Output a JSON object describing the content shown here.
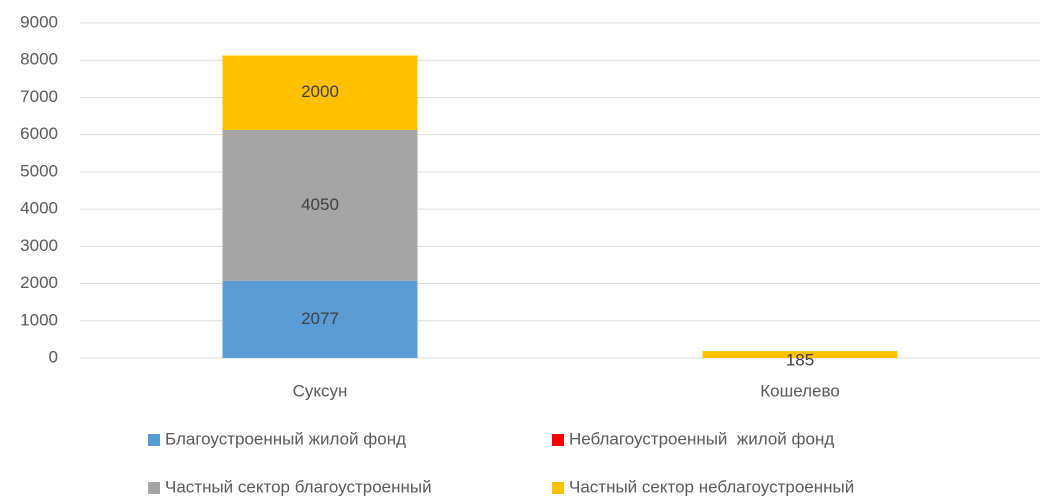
{
  "chart_data": {
    "type": "stacked-bar",
    "categories": [
      "Суксун",
      "Кошелево"
    ],
    "series": [
      {
        "name": "Благоустроенный жилой фонд",
        "color": "#5b9bd5",
        "values": [
          2077,
          0
        ]
      },
      {
        "name": "Неблагоустроенный  жилой фонд",
        "color": "#ff0000",
        "values": [
          0,
          0
        ]
      },
      {
        "name": "Частный сектор благоустроенный",
        "color": "#a5a5a5",
        "values": [
          4050,
          0
        ]
      },
      {
        "name": "Частный сектор неблагоустроенный",
        "color": "#ffc000",
        "values": [
          2000,
          185
        ]
      }
    ],
    "ylim": [
      0,
      9000
    ],
    "yticks": [
      0,
      1000,
      2000,
      3000,
      4000,
      5000,
      6000,
      7000,
      8000,
      9000
    ],
    "grid": true,
    "legend": "bottom"
  }
}
